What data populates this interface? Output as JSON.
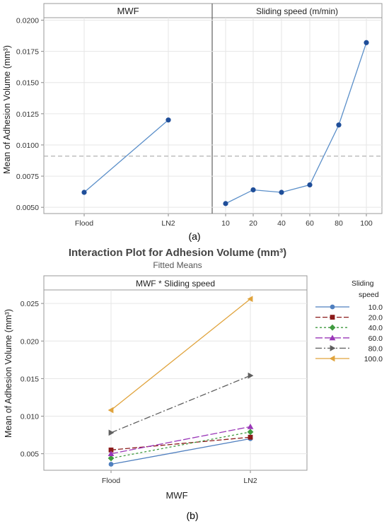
{
  "figure": {
    "panel_a_caption": "(a)",
    "panel_b_caption": "(b)"
  },
  "chart_data": [
    {
      "type": "line",
      "ylabel": "Mean of Adhesion Volume (mm³)",
      "ylim": [
        0.0045,
        0.0202
      ],
      "yticks": [
        "0.0050",
        "0.0075",
        "0.0100",
        "0.0125",
        "0.0150",
        "0.0175",
        "0.0200"
      ],
      "reference_line": 0.0091,
      "grid": true,
      "panels": [
        {
          "title": "MWF",
          "categories": [
            "Flood",
            "LN2"
          ],
          "values": [
            0.0062,
            0.012
          ]
        },
        {
          "title": "Sliding speed (m/min)",
          "categories": [
            "10",
            "20",
            "40",
            "60",
            "80",
            "100"
          ],
          "values": [
            0.0053,
            0.0064,
            0.0062,
            0.0068,
            0.0116,
            0.0182
          ]
        }
      ],
      "colors": {
        "line": "#5b8fc9",
        "marker": "#1f4e99",
        "reference": "#aaaaaa"
      }
    },
    {
      "type": "line",
      "title": "Interaction Plot for Adhesion Volume (mm³)",
      "subtitle": "Fitted Means",
      "panel_title": "MWF * Sliding speed",
      "xlabel": "MWF",
      "ylabel": "Mean of Adhesion Volume (mm³)",
      "categories": [
        "Flood",
        "LN2"
      ],
      "ylim": [
        0.0028,
        0.0268
      ],
      "yticks": [
        "0.005",
        "0.010",
        "0.015",
        "0.020",
        "0.025"
      ],
      "legend_title": [
        "Sliding",
        "speed"
      ],
      "legend_placement": "right",
      "grid": true,
      "series": [
        {
          "name": "10.0",
          "values": [
            0.0036,
            0.007
          ],
          "color": "#4f7fbf",
          "marker": "circle",
          "dash": ""
        },
        {
          "name": "20.0",
          "values": [
            0.0055,
            0.0072
          ],
          "color": "#8b1a1a",
          "marker": "square",
          "dash": "7,3"
        },
        {
          "name": "40.0",
          "values": [
            0.0044,
            0.0079
          ],
          "color": "#3f9a3f",
          "marker": "diamond",
          "dash": "3,3"
        },
        {
          "name": "60.0",
          "values": [
            0.005,
            0.0086
          ],
          "color": "#9a37b8",
          "marker": "triangle-up",
          "dash": "10,3"
        },
        {
          "name": "80.0",
          "values": [
            0.0078,
            0.0154
          ],
          "color": "#5f5f5f",
          "marker": "triangle-right",
          "dash": "9,3,2,3"
        },
        {
          "name": "100.0",
          "values": [
            0.0108,
            0.0256
          ],
          "color": "#e0a33c",
          "marker": "triangle-left",
          "dash": ""
        }
      ]
    }
  ]
}
